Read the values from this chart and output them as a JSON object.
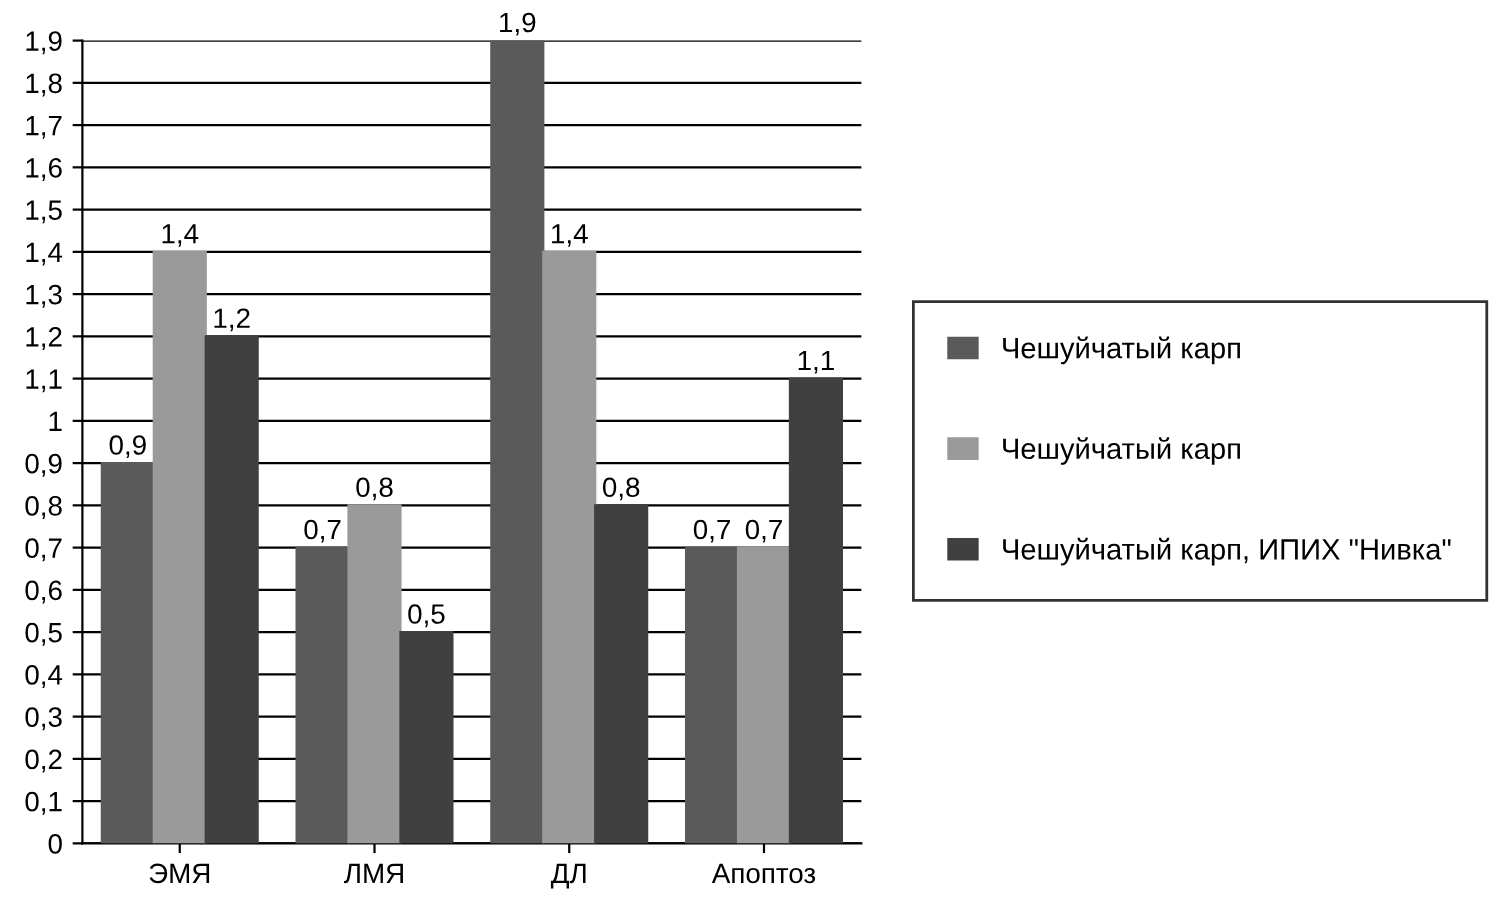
{
  "chart_data": {
    "type": "bar",
    "categories": [
      "ЭМЯ",
      "ЛМЯ",
      "ДЛ",
      "Апоптоз"
    ],
    "series": [
      {
        "name": "Чешуйчатый карп",
        "color": "#5a5a5a",
        "values": [
          0.9,
          0.7,
          1.9,
          0.7
        ],
        "value_labels": [
          "0,9",
          "0,7",
          "1,9",
          "0,7"
        ]
      },
      {
        "name": "Чешуйчатый карп",
        "color": "#9a9a9a",
        "values": [
          1.4,
          0.8,
          1.4,
          0.7
        ],
        "value_labels": [
          "1,4",
          "0,8",
          "1,4",
          "0,7"
        ]
      },
      {
        "name": "Чешуйчатый карп, ИПИХ \"Нивка\"",
        "color": "#404040",
        "values": [
          1.2,
          0.5,
          0.8,
          1.1
        ],
        "value_labels": [
          "1,2",
          "0,5",
          "0,8",
          "1,1"
        ]
      }
    ],
    "ylim": [
      0,
      1.9
    ],
    "yticks": [
      0,
      {
        "value": 0.1,
        "label": "0,1"
      },
      {
        "value": 0.2,
        "label": "0,2"
      },
      {
        "value": 0.3,
        "label": "0,3"
      },
      {
        "value": 0.4,
        "label": "0,4"
      },
      {
        "value": 0.5,
        "label": "0,5"
      },
      {
        "value": 0.6,
        "label": "0,6"
      },
      {
        "value": 0.7,
        "label": "0,7"
      },
      {
        "value": 0.8,
        "label": "0,8"
      },
      {
        "value": 0.9,
        "label": "0,9"
      },
      1,
      {
        "value": 1.1,
        "label": "1,1"
      },
      {
        "value": 1.2,
        "label": "1,2"
      },
      {
        "value": 1.3,
        "label": "1,3"
      },
      {
        "value": 1.4,
        "label": "1,4"
      },
      {
        "value": 1.5,
        "label": "1,5"
      },
      {
        "value": 1.6,
        "label": "1,6"
      },
      {
        "value": 1.7,
        "label": "1,7"
      },
      {
        "value": 1.8,
        "label": "1,8"
      },
      {
        "value": 1.9,
        "label": "1,9"
      }
    ],
    "grid": "y",
    "legend": "right"
  }
}
